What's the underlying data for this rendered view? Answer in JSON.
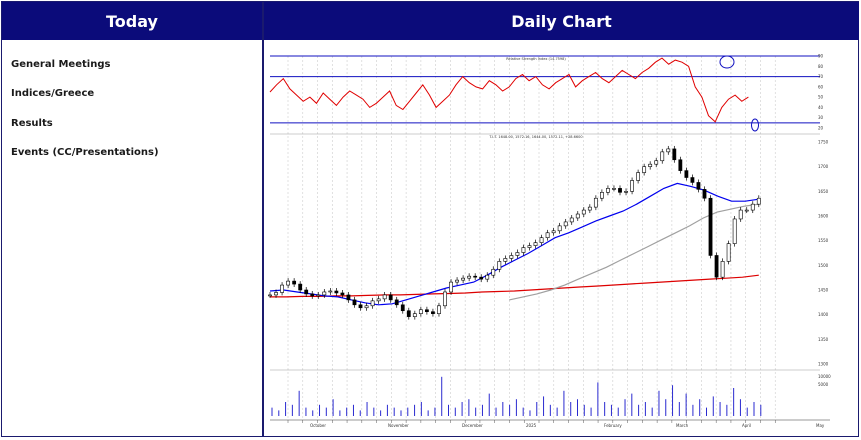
{
  "panels": {
    "left_title": "Today",
    "right_title": "Daily Chart"
  },
  "menu": [
    {
      "label": "General Meetings"
    },
    {
      "label": "Indices/Greece"
    },
    {
      "label": "Results"
    },
    {
      "label": "Events (CC/Presentations)"
    }
  ],
  "chart_data": {
    "type": "line",
    "rsi_title": "Relative Strength Index (14.7598)",
    "price_title": "T.I.T. 1648.00, 1572.16, 1644.00, 1572.11, +28.6600",
    "rsi_yticks": [
      "90",
      "80",
      "70",
      "60",
      "50",
      "40",
      "30",
      "20"
    ],
    "price_yticks": [
      "1750",
      "1700",
      "1650",
      "1600",
      "1550",
      "1500",
      "1450",
      "1400",
      "1350",
      "1300"
    ],
    "volume_yticks": [
      "10000",
      "5000"
    ],
    "month_labels": [
      "October",
      "November",
      "December",
      "2025",
      "February",
      "March",
      "April",
      "May"
    ],
    "price_series": [
      1440,
      1445,
      1460,
      1468,
      1462,
      1450,
      1442,
      1438,
      1440,
      1446,
      1448,
      1444,
      1440,
      1430,
      1420,
      1414,
      1418,
      1428,
      1432,
      1440,
      1430,
      1420,
      1408,
      1396,
      1402,
      1410,
      1406,
      1402,
      1418,
      1446,
      1466,
      1470,
      1474,
      1478,
      1476,
      1472,
      1480,
      1492,
      1508,
      1514,
      1520,
      1526,
      1536,
      1540,
      1546,
      1556,
      1566,
      1570,
      1580,
      1588,
      1596,
      1604,
      1612,
      1618,
      1636,
      1648,
      1656,
      1656,
      1648,
      1650,
      1672,
      1688,
      1700,
      1705,
      1712,
      1730,
      1736,
      1714,
      1692,
      1678,
      1668,
      1654,
      1636,
      1520,
      1476,
      1508,
      1544,
      1594,
      1612,
      1612,
      1624,
      1636
    ],
    "rsi_series": [
      55,
      62,
      68,
      58,
      52,
      46,
      50,
      44,
      54,
      48,
      42,
      50,
      56,
      52,
      48,
      40,
      44,
      50,
      56,
      42,
      38,
      46,
      54,
      62,
      52,
      40,
      46,
      52,
      62,
      70,
      64,
      60,
      58,
      66,
      62,
      56,
      60,
      68,
      72,
      66,
      70,
      62,
      58,
      64,
      68,
      72,
      60,
      66,
      70,
      74,
      68,
      64,
      70,
      76,
      72,
      68,
      74,
      78,
      84,
      88,
      82,
      86,
      84,
      80,
      60,
      50,
      32,
      26,
      40,
      48,
      52,
      46,
      50
    ],
    "sma_fast": [
      1448,
      1450,
      1446,
      1442,
      1438,
      1436,
      1430,
      1424,
      1420,
      1422,
      1430,
      1438,
      1446,
      1454,
      1460,
      1466,
      1480,
      1496,
      1510,
      1524,
      1540,
      1556,
      1566,
      1578,
      1590,
      1600,
      1610,
      1624,
      1640,
      1656,
      1666,
      1660,
      1652,
      1640,
      1630,
      1630,
      1634
    ],
    "sma_slow": [
      1436,
      1436,
      1437,
      1437,
      1438,
      1438,
      1439,
      1440,
      1440,
      1441,
      1442,
      1443,
      1444,
      1446,
      1447,
      1448,
      1450,
      1452,
      1454,
      1456,
      1458,
      1460,
      1462,
      1464,
      1466,
      1468,
      1470,
      1472,
      1474,
      1476,
      1480
    ],
    "sma_mid": [
      1430,
      1436,
      1442,
      1450,
      1460,
      1472,
      1484,
      1496,
      1510,
      1524,
      1538,
      1552,
      1566,
      1580,
      1596,
      1608,
      1614,
      1620,
      1624
    ],
    "volume": [
      3,
      2,
      5,
      4,
      9,
      3,
      2,
      4,
      3,
      6,
      2,
      3,
      4,
      2,
      5,
      3,
      2,
      4,
      3,
      2,
      3,
      4,
      5,
      2,
      3,
      14,
      4,
      3,
      5,
      6,
      3,
      4,
      8,
      3,
      5,
      4,
      6,
      3,
      2,
      5,
      7,
      4,
      3,
      9,
      5,
      6,
      4,
      3,
      12,
      5,
      4,
      3,
      6,
      8,
      4,
      5,
      3,
      9,
      6,
      11,
      5,
      8,
      4,
      6,
      3,
      7,
      5,
      4,
      10,
      6,
      3,
      5,
      4
    ],
    "colors": {
      "rsi": "#e00000",
      "price": "#000000",
      "sma_fast": "#0000ee",
      "sma_slow": "#dd0000",
      "sma_mid": "#a0a0a0",
      "volume": "#2a2ad0",
      "guide_line": "#1010c0",
      "header": "#0b0b7a"
    }
  }
}
